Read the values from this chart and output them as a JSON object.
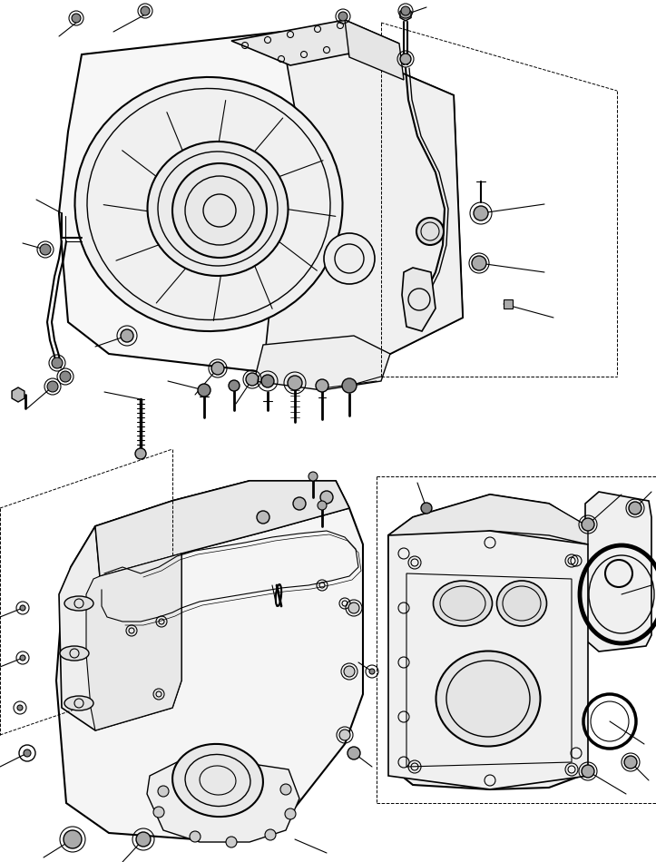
{
  "background_color": "#ffffff",
  "line_color": "#000000",
  "fig_width": 7.23,
  "fig_height": 9.5,
  "dpi": 100
}
